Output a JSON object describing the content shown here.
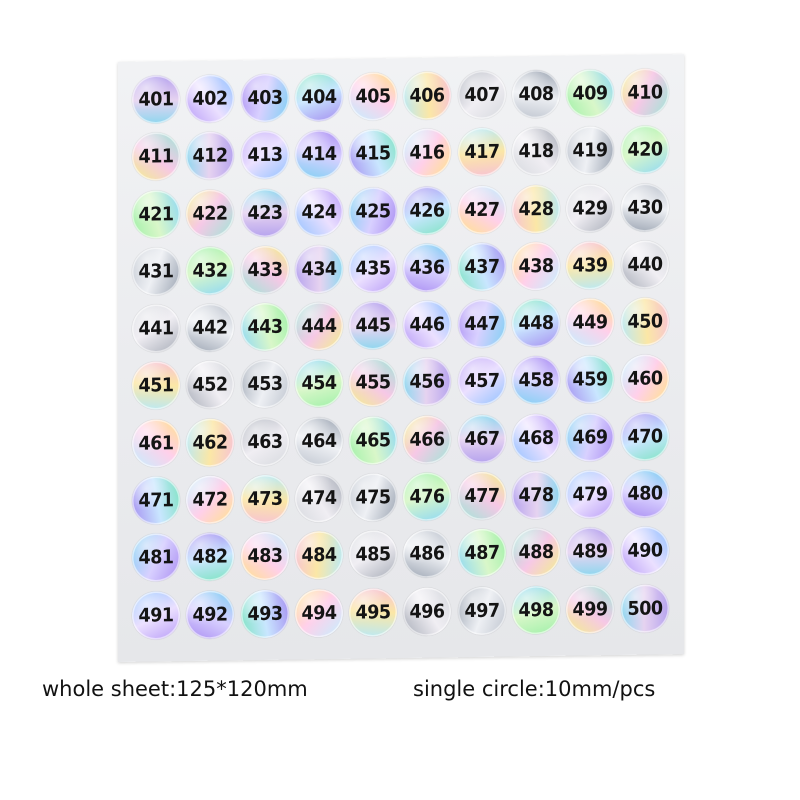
{
  "sheet": {
    "start_number": 401,
    "end_number": 500,
    "columns": 10,
    "palette": [
      [
        "#8fd7ef",
        "#e6d3f0",
        "#b6a3ee"
      ],
      [
        "#7ee3c2",
        "#c9e6ff",
        "#a48ef0"
      ],
      [
        "#d6d9de",
        "#f0eef3",
        "#a7acb7"
      ],
      [
        "#f3f08a",
        "#f6c8e6",
        "#9ee6d6"
      ],
      [
        "#a98df2",
        "#d8d0ff",
        "#7fd0f3"
      ],
      [
        "#f7c3d4",
        "#fbe7a6",
        "#b9e9f6"
      ],
      [
        "#9ff0a8",
        "#d9f7c9",
        "#8ed8f5"
      ],
      [
        "#b79bf7",
        "#ebe0ff",
        "#91c1ff"
      ],
      [
        "#ffe28a",
        "#ffd0ea",
        "#c3f0ff"
      ],
      [
        "#bfc5cf",
        "#eef0f4",
        "#9aa3b1"
      ]
    ]
  },
  "captions": {
    "whole_sheet": "whole sheet:125*120mm",
    "single_circle": "single circle:10mm/pcs"
  }
}
